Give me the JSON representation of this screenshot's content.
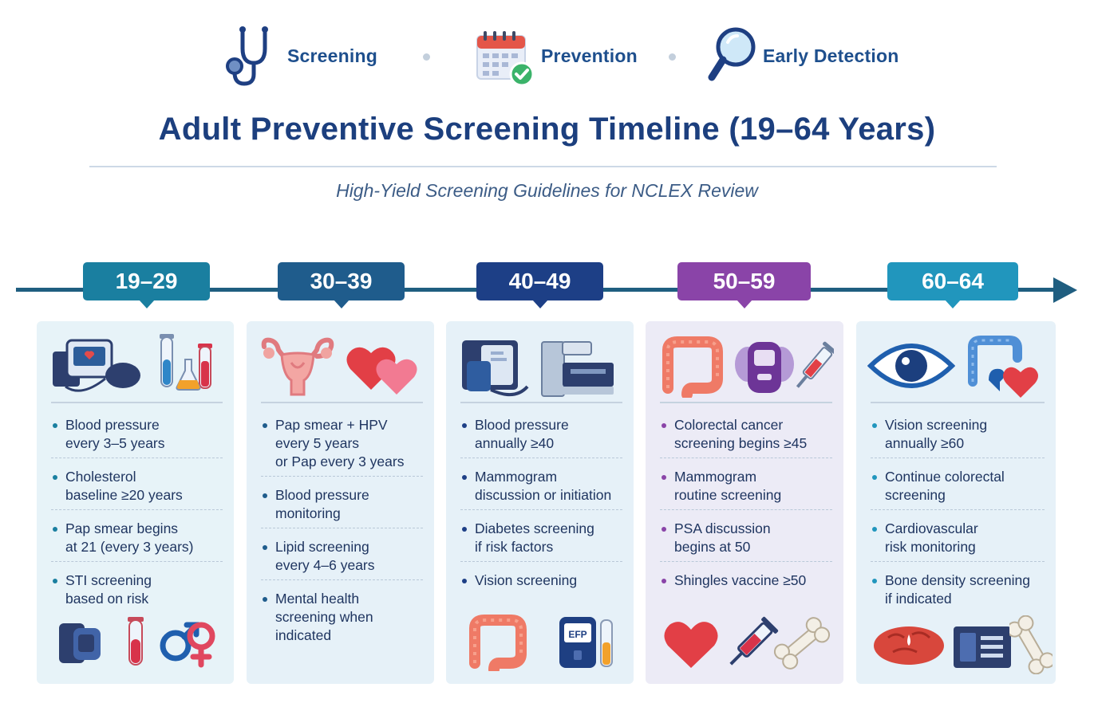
{
  "header": {
    "items": [
      {
        "label": "Screening",
        "icon": "stethoscope-icon"
      },
      {
        "label": "Prevention",
        "icon": "calendar-check-icon"
      },
      {
        "label": "Early Detection",
        "icon": "magnifier-icon"
      }
    ],
    "title": "Adult Preventive Screening Timeline (19–64 Years)",
    "subtitle": "High-Yield Screening Guidelines for NCLEX Review"
  },
  "colors": {
    "teal": "#1a7fa0",
    "blue": "#1f5c8c",
    "navy": "#1d3f86",
    "purple": "#8a44a8",
    "light_teal": "#2196bd",
    "axis": "#1f5e80"
  },
  "columns": [
    {
      "age": "19–29",
      "items": [
        "Blood pressure\nevery 3–5 years",
        "Cholesterol\nbaseline ≥20 years",
        "Pap smear begins\nat 21 (every 3 years)",
        "STI screening\nbased on risk"
      ],
      "icons_top": [
        "blood-pressure-monitor-icon",
        "test-tubes-icon"
      ],
      "icons_bottom": [
        "bp-cuff-icon",
        "test-tube-icon",
        "gender-symbols-icon"
      ]
    },
    {
      "age": "30–39",
      "items": [
        "Pap smear + HPV\nevery 5 years\nor Pap every 3 years",
        "Blood pressure\nmonitoring",
        "Lipid screening\nevery 4–6 years",
        "Mental health\nscreening when indicated"
      ],
      "icons_top": [
        "uterus-icon",
        "hearts-icon"
      ],
      "icons_bottom": []
    },
    {
      "age": "40–49",
      "items": [
        "Blood pressure\nannually ≥40",
        "Mammogram\ndiscussion or initiation",
        "Diabetes screening\nif risk factors",
        "Vision screening"
      ],
      "icons_top": [
        "bp-monitor-icon",
        "mammography-machine-icon"
      ],
      "icons_bottom": [
        "colon-icon",
        "glucometer-icon"
      ],
      "glucometer_text": "EFP"
    },
    {
      "age": "50–59",
      "items": [
        "Colorectal cancer\nscreening begins ≥45",
        "Mammogram\nroutine screening",
        "PSA discussion\nbegins at 50",
        "Shingles vaccine ≥50"
      ],
      "icons_top": [
        "colon-icon",
        "prostate-device-icon",
        "syringe-icon"
      ],
      "icons_bottom": [
        "heart-icon",
        "syringe-icon",
        "bone-icon"
      ]
    },
    {
      "age": "60–64",
      "items": [
        "Vision screening\nannually ≥60",
        "Continue colorectal\nscreening",
        "Cardiovascular\nrisk monitoring",
        "Bone density screening\nif indicated"
      ],
      "icons_top": [
        "eye-icon",
        "colon-organs-icon",
        "heart-icon"
      ],
      "icons_bottom": [
        "brain-icon",
        "dexa-scanner-icon",
        "bone-icon"
      ]
    }
  ]
}
